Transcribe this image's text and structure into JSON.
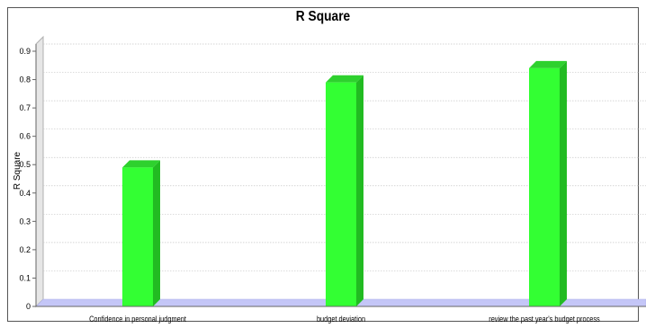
{
  "chart_data": {
    "type": "bar",
    "title": "R Square",
    "xlabel": "",
    "ylabel": "R Square",
    "categories": [
      "Confidence in personal judgment",
      "budget deviation",
      "review the past year's budget process"
    ],
    "series": [
      {
        "values": [
          0.49,
          0.79,
          0.84
        ]
      }
    ],
    "ylim": [
      0,
      0.9
    ],
    "yticks": [
      "0",
      "0.1",
      "0.2",
      "0.3",
      "0.4",
      "0.5",
      "0.6",
      "0.7",
      "0.8",
      "0.9"
    ],
    "grid": true,
    "legend": "none",
    "bar_color": "#33ff33",
    "bar_side_color": "#22bb22",
    "bar_top_color": "#2ed12e",
    "floor_color": "#c4c6f7"
  }
}
